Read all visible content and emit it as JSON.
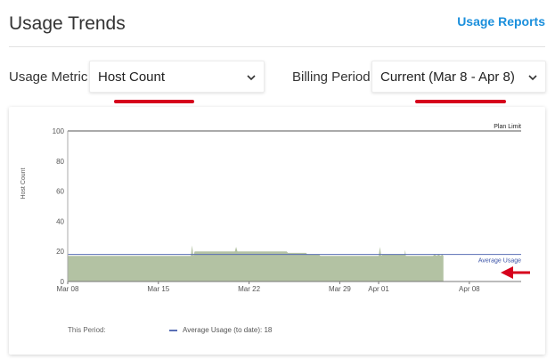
{
  "header": {
    "title": "Usage Trends",
    "link_label": "Usage Reports"
  },
  "filters": {
    "metric_label": "Usage Metric",
    "metric_value": "Host Count",
    "period_label": "Billing Period",
    "period_value": "Current (Mar 8 - Apr 8)"
  },
  "colors": {
    "accent": "#1a8fdc",
    "annotation_red": "#d6001c",
    "usage_fill": "#b3c2a3",
    "average_line": "#5a6fb5"
  },
  "icons": {
    "dropdown": "chevron-down-icon",
    "arrow": "red-arrow-icon"
  },
  "chart_data": {
    "type": "area",
    "ylabel": "Host Count",
    "ylim": [
      0,
      100
    ],
    "yticks": [
      0,
      20,
      40,
      60,
      80,
      100
    ],
    "xlim": [
      0,
      35
    ],
    "x_tick_positions": [
      0,
      7,
      14,
      21,
      24,
      31
    ],
    "x_tick_labels": [
      "Mar 08",
      "Mar 15",
      "Mar 22",
      "Mar 29",
      "Apr 01",
      "Apr 08"
    ],
    "grid": false,
    "series": [
      {
        "name": "Host Count",
        "color": "#b3c2a3",
        "x": [
          0,
          9.5,
          9.6,
          9.7,
          9.8,
          12.9,
          13.0,
          13.1,
          15.0,
          16.9,
          17.0,
          18.4,
          18.5,
          19.4,
          19.5,
          24.0,
          24.1,
          24.2,
          24.3,
          26.0,
          26.05,
          26.1,
          28.0,
          28.2,
          28.3,
          28.5,
          28.6,
          28.8,
          28.9,
          29.0
        ],
        "values": [
          17,
          17,
          24,
          17,
          20,
          20,
          23,
          20,
          20,
          20,
          19,
          19,
          18,
          18,
          17,
          17,
          23,
          17,
          18,
          18,
          21,
          17,
          17,
          17,
          18,
          17,
          18,
          17,
          18,
          17
        ]
      }
    ],
    "reference_lines": [
      {
        "label": "Plan Limit",
        "y": 100
      },
      {
        "label": "Average Usage",
        "y": 18
      }
    ],
    "footer": {
      "period_label": "This Period:",
      "legend_text": "Average Usage (to date): 18"
    }
  }
}
